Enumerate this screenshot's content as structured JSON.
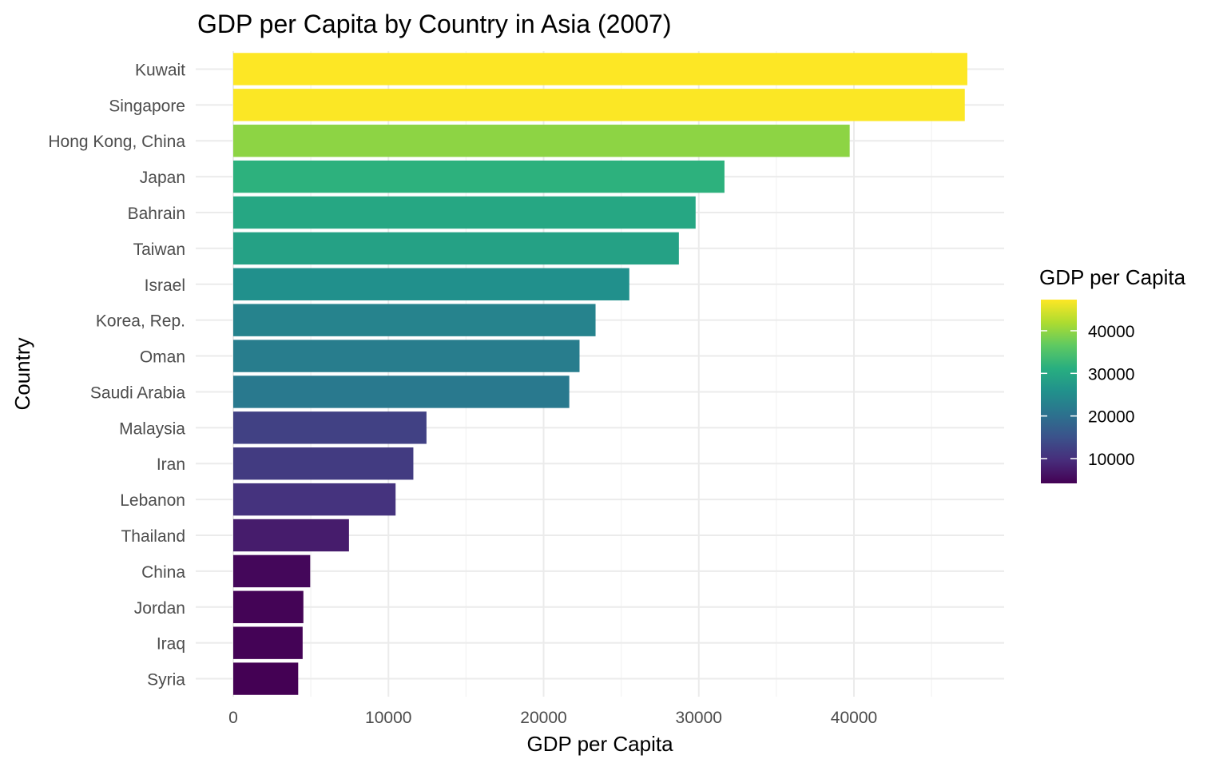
{
  "chart_data": {
    "type": "bar",
    "orientation": "horizontal",
    "title": "GDP per Capita by Country in Asia (2007)",
    "xlabel": "GDP per Capita",
    "ylabel": "Country",
    "xlim": [
      0,
      48000
    ],
    "x_ticks": [
      0,
      10000,
      20000,
      30000,
      40000
    ],
    "x_tick_labels": [
      "0",
      "10000",
      "20000",
      "30000",
      "40000"
    ],
    "grid": true,
    "categories": [
      "Kuwait",
      "Singapore",
      "Hong Kong, China",
      "Japan",
      "Bahrain",
      "Taiwan",
      "Israel",
      "Korea, Rep.",
      "Oman",
      "Saudi Arabia",
      "Malaysia",
      "Iran",
      "Lebanon",
      "Thailand",
      "China",
      "Jordan",
      "Iraq",
      "Syria"
    ],
    "values": [
      47307,
      47143,
      39725,
      31656,
      29796,
      28718,
      25523,
      23348,
      22316,
      21655,
      12452,
      11606,
      10461,
      7458,
      4959,
      4519,
      4471,
      4185
    ],
    "color_scale": "viridis",
    "legend": {
      "title": "GDP per Capita",
      "placement": "right",
      "ticks": [
        10000,
        20000,
        30000,
        40000
      ],
      "tick_labels": [
        "10000",
        "20000",
        "30000",
        "40000"
      ],
      "range": [
        4185,
        47307
      ]
    }
  }
}
